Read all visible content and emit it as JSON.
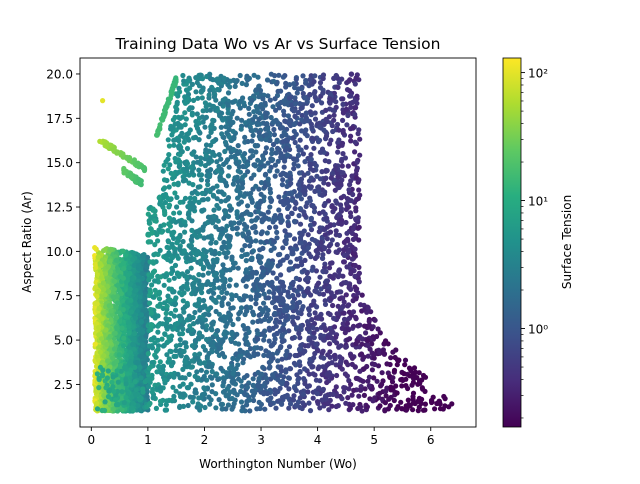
{
  "chart_data": {
    "type": "scatter",
    "title": "Training Data Wo vs Ar vs Surface Tension",
    "xlabel": "Worthington Number (Wo)",
    "ylabel": "Aspect Ratio (Ar)",
    "xlim": [
      -0.2,
      6.8
    ],
    "ylim": [
      0.1,
      20.9
    ],
    "xticks": [
      0,
      1,
      2,
      3,
      4,
      5,
      6
    ],
    "xtick_labels": [
      "0",
      "1",
      "2",
      "3",
      "4",
      "5",
      "6"
    ],
    "yticks": [
      2.5,
      5.0,
      7.5,
      10.0,
      12.5,
      15.0,
      17.5,
      20.0
    ],
    "ytick_labels": [
      "2.5",
      "5.0",
      "7.5",
      "10.0",
      "12.5",
      "15.0",
      "17.5",
      "20.0"
    ],
    "colorbar": {
      "label": "Surface Tension",
      "scale": "log",
      "min": 0.17,
      "max": 130,
      "ticks": [
        1,
        10,
        100
      ],
      "tick_labels": [
        "10⁰",
        "10¹",
        "10²"
      ],
      "colormap": "viridis"
    },
    "grid": false,
    "regions": [
      {
        "desc_x": [
          0.05,
          1.0
        ],
        "desc_y": [
          1,
          10.3
        ],
        "surface_tension": [
          3,
          100
        ]
      },
      {
        "desc_x": [
          0.1,
          6.5
        ],
        "desc_y": [
          1,
          20
        ],
        "surface_tension": [
          0.2,
          15
        ]
      }
    ],
    "outliers": [
      {
        "x": 0.2,
        "y": 18.5,
        "surface_tension": 100
      },
      {
        "x": 0.15,
        "y": 16.2,
        "surface_tension": 60
      }
    ]
  }
}
